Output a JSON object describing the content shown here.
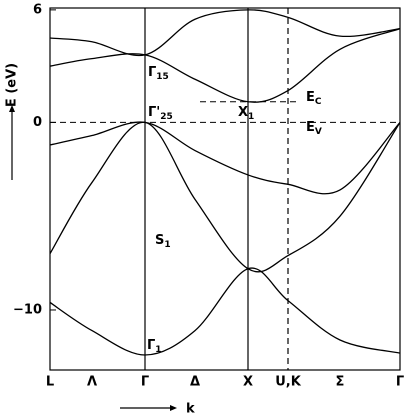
{
  "chart_data": {
    "type": "band-structure",
    "categories": [
      "L",
      "Λ",
      "Γ",
      "Δ",
      "X",
      "U,K",
      "Σ",
      "Γ"
    ],
    "ylim": [
      -13.2,
      6.1
    ],
    "yticks": [
      6,
      0,
      {
        "value": -10,
        "label": "−10"
      }
    ],
    "ylabel": "E (eV)",
    "xlabel": "k",
    "series": [
      {
        "name": "band-1",
        "color": "#000",
        "values": [
          -9.6,
          -11.1,
          -12.4,
          -11.1,
          -7.8,
          -9.5,
          -11.6,
          -12.3
        ]
      },
      {
        "name": "band-2",
        "color": "#000",
        "values": [
          -7.0,
          -3.2,
          0,
          -4.1,
          -7.8,
          -7.1,
          -5.0,
          0
        ]
      },
      {
        "name": "band-3",
        "color": "#000",
        "values": [
          -1.2,
          -0.7,
          0,
          -1.5,
          -2.8,
          -3.3,
          -3.6,
          0
        ]
      },
      {
        "name": "band-4",
        "color": "#000",
        "values": [
          3.0,
          3.4,
          3.6,
          2.3,
          1.1,
          1.7,
          3.9,
          5.0
        ]
      },
      {
        "name": "band-5",
        "color": "#000",
        "values": [
          4.5,
          4.3,
          3.6,
          5.5,
          6.0,
          5.6,
          4.6,
          5.0
        ]
      }
    ],
    "annotations": [
      {
        "text": "Γ",
        "sub": "15"
      },
      {
        "text": "Γ'",
        "sub": "25"
      },
      {
        "text": "X",
        "sub": "1"
      },
      {
        "text": "E",
        "sub": "C"
      },
      {
        "text": "E",
        "sub": "V"
      },
      {
        "text": "S",
        "sub": "1"
      },
      {
        "text": "Γ",
        "sub": "1"
      }
    ]
  }
}
